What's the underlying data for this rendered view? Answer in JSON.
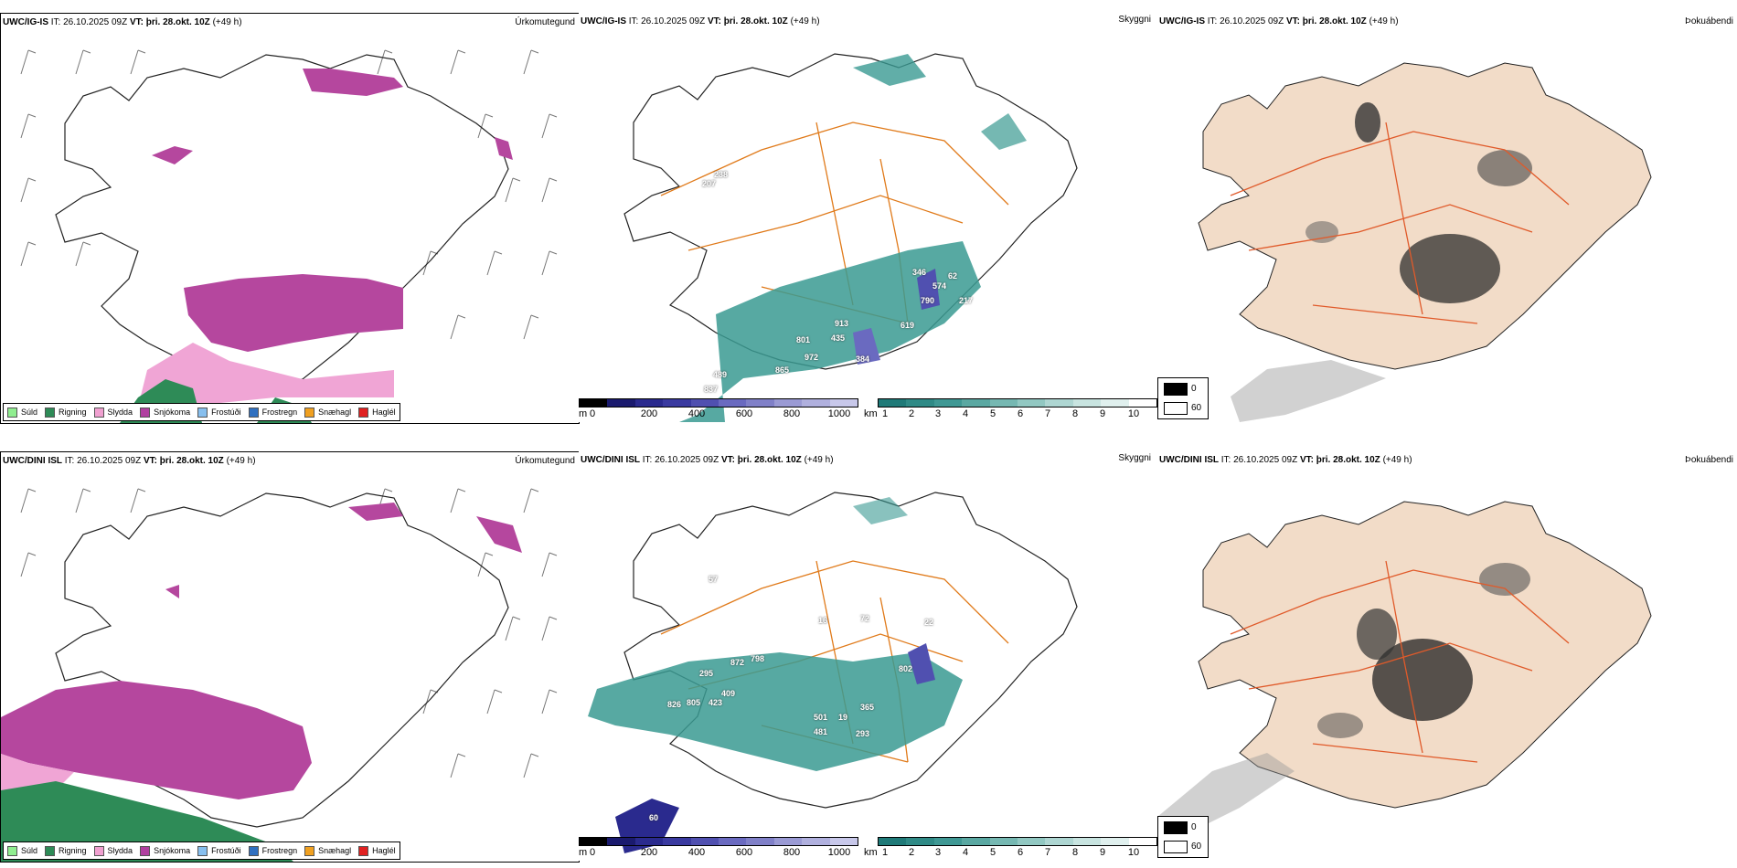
{
  "rows": [
    {
      "id": "top",
      "model": "UWC/IG-IS",
      "it_label": "IT:",
      "it_value": "26.10.2025 09Z",
      "vt_label": "VT:",
      "vt_value": "þri. 28.okt. 10Z",
      "lead": "(+49 h)",
      "panel1_type": "Úrkomutegund",
      "panel2_type": "Skyggni",
      "panel3_type": "Þokuábendi",
      "visibility_labels": [
        "238",
        "207",
        "346",
        "574",
        "790",
        "217",
        "913",
        "435",
        "801",
        "619",
        "972",
        "384",
        "489",
        "865",
        "837",
        "62"
      ]
    },
    {
      "id": "bottom",
      "model": "UWC/DINI ISL",
      "it_label": "IT:",
      "it_value": "26.10.2025 09Z",
      "vt_label": "VT:",
      "vt_value": "þri. 28.okt. 10Z",
      "lead": "(+49 h)",
      "panel1_type": "Úrkomutegund",
      "panel2_type": "Skyggni",
      "panel3_type": "Þokuábendi",
      "visibility_labels": [
        "57",
        "16",
        "72",
        "22",
        "872",
        "798",
        "295",
        "409",
        "805",
        "423",
        "826",
        "802",
        "365",
        "501",
        "481",
        "293",
        "60",
        "19"
      ]
    }
  ],
  "precip_legend": [
    {
      "label": "Súld",
      "color": "#90ee90"
    },
    {
      "label": "Rigning",
      "color": "#2e8b57"
    },
    {
      "label": "Slydda",
      "color": "#f0a0d0"
    },
    {
      "label": "Snjókoma",
      "color": "#b040a0"
    },
    {
      "label": "Frostúði",
      "color": "#87bfee"
    },
    {
      "label": "Frostregn",
      "color": "#3070c0"
    },
    {
      "label": "Snæhagl",
      "color": "#f0a020"
    },
    {
      "label": "Haglél",
      "color": "#e02020"
    }
  ],
  "ceiling_bar": {
    "unit": "m",
    "ticks": [
      "0",
      "200",
      "400",
      "600",
      "800",
      "1000"
    ],
    "colors": [
      "#000000",
      "#1a1a6e",
      "#2a2a8e",
      "#3a3aa0",
      "#5050b0",
      "#6a6ac0",
      "#8080c8",
      "#9a9ad4",
      "#b0b0de",
      "#c8c8ea"
    ]
  },
  "visibility_bar": {
    "unit": "km",
    "ticks": [
      "1",
      "2",
      "3",
      "4",
      "5",
      "6",
      "7",
      "8",
      "9",
      "10"
    ],
    "colors": [
      "#1f7a78",
      "#2f8a86",
      "#3f9894",
      "#5aa8a2",
      "#76b8b2",
      "#92c8c2",
      "#aed6d2",
      "#c8e4e0",
      "#e0f0ee",
      "#ffffff"
    ]
  },
  "fog_legend": [
    {
      "label": "0",
      "color": "#000000"
    },
    {
      "label": "60",
      "color": "#ffffff"
    }
  ],
  "colors": {
    "snow": "#b5479e",
    "sleet": "#f0a5d5",
    "rain": "#2e8b57",
    "vis_teal": "#3a9a92",
    "roads": "#e07a1a",
    "fog_land": "#f2dcc8",
    "fog_roads": "#e05a2a"
  }
}
